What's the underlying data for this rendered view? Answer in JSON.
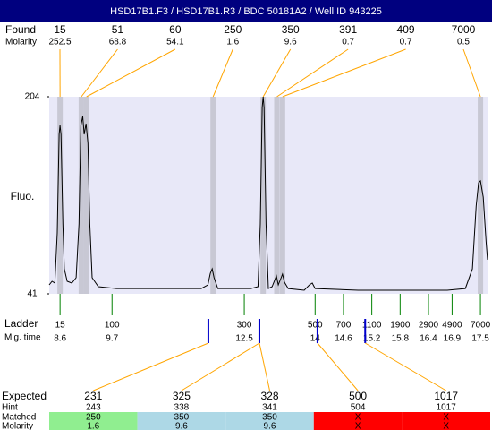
{
  "header": {
    "title": "HSD17B1.F3 / HSD17B1.R3 / BDC 50181A2 / Well ID 943225"
  },
  "chart_data": {
    "type": "line",
    "y_label": "Fluo.",
    "color": "#000000",
    "background": "#e8e8f8",
    "xlim": [
      8.37,
      17.65
    ],
    "ylim": [
      41,
      204
    ],
    "yticks": [
      41,
      204
    ],
    "x": [
      8.37,
      8.43,
      8.49,
      8.54,
      8.58,
      8.6,
      8.62,
      8.66,
      8.69,
      8.75,
      8.85,
      8.94,
      9.0,
      9.04,
      9.08,
      9.11,
      9.15,
      9.19,
      9.23,
      9.28,
      9.41,
      9.79,
      10.74,
      11.59,
      11.73,
      11.78,
      11.82,
      11.86,
      11.94,
      12.64,
      12.79,
      12.84,
      12.88,
      12.9,
      12.92,
      12.96,
      13.01,
      13.09,
      13.15,
      13.18,
      13.22,
      13.28,
      13.31,
      13.35,
      13.43,
      13.77,
      13.88,
      13.94,
      14.0,
      14.91,
      16.8,
      17.18,
      17.33,
      17.41,
      17.46,
      17.5,
      17.56,
      17.62,
      17.65
    ],
    "values": [
      48.4,
      51.4,
      49.9,
      91.4,
      172.9,
      180.3,
      172.9,
      98.8,
      61.7,
      51.4,
      49.9,
      54.3,
      98.8,
      180.3,
      187.7,
      172.9,
      181.8,
      165.5,
      98.8,
      54.3,
      46.9,
      45.4,
      45.4,
      45.4,
      48.4,
      58.0,
      61.7,
      54.3,
      45.4,
      45.4,
      46.9,
      98.8,
      195.1,
      204,
      195.1,
      98.8,
      45.4,
      46.9,
      52.9,
      55.8,
      48.4,
      54.3,
      57.3,
      50.6,
      45.4,
      44.0,
      48.4,
      49.9,
      45.4,
      44.0,
      44.0,
      45.4,
      61.7,
      113.6,
      132.9,
      134.4,
      121.0,
      84.0,
      69.2
    ],
    "found": {
      "label": "Found",
      "molarity_label": "Molarity",
      "peaks": [
        {
          "size": 15,
          "molarity": 252.5,
          "mig_time": 8.6
        },
        {
          "size": 51,
          "molarity": 68.8,
          "mig_time": 9.05
        },
        {
          "size": 60,
          "molarity": 54.1,
          "mig_time": 9.16
        },
        {
          "size": 250,
          "molarity": 1.6,
          "mig_time": 11.84
        },
        {
          "size": 350,
          "molarity": 9.6,
          "mig_time": 12.9
        },
        {
          "size": 391,
          "molarity": 0.7,
          "mig_time": 13.19
        },
        {
          "size": 409,
          "molarity": 0.7,
          "mig_time": 13.31
        },
        {
          "size": 7000,
          "molarity": 0.5,
          "mig_time": 17.5
        }
      ]
    },
    "ladder": {
      "label": "Ladder",
      "time_label": "Mig. time",
      "steps": [
        {
          "size": 15,
          "time": 8.6
        },
        {
          "size": 100,
          "time": 9.7
        },
        {
          "size": 300,
          "time": 12.5
        },
        {
          "size": 500,
          "time": 14
        },
        {
          "size": 700,
          "time": 14.6
        },
        {
          "size": 1100,
          "time": 15.2
        },
        {
          "size": 1900,
          "time": 15.8
        },
        {
          "size": 2900,
          "time": 16.4
        },
        {
          "size": 4900,
          "time": 16.9
        },
        {
          "size": 7000,
          "time": 17.5
        }
      ]
    },
    "expected": {
      "label": "Expected",
      "hint_label": "Hint",
      "matched_label": "Matched",
      "molarity_label": "Molarity",
      "items": [
        {
          "expected": 231,
          "hint": 243,
          "matched": 250,
          "molarity": 1.6,
          "mig_time": 11.74,
          "color": "#90ee90"
        },
        {
          "expected": 325,
          "hint": 338,
          "matched": 350,
          "molarity": 9.6,
          "mig_time": 12.82,
          "color": "#add8e6"
        },
        {
          "expected": 328,
          "hint": 341,
          "matched": 350,
          "molarity": 9.6,
          "mig_time": 12.82,
          "color": "#add8e6"
        },
        {
          "expected": 500,
          "hint": 504,
          "matched": "X",
          "molarity": "X",
          "mig_time": 14.05,
          "color": "#ff0000"
        },
        {
          "expected": 1017,
          "hint": 1017,
          "matched": "X",
          "molarity": "X",
          "mig_time": 15.06,
          "color": "#ff0000"
        }
      ]
    }
  }
}
